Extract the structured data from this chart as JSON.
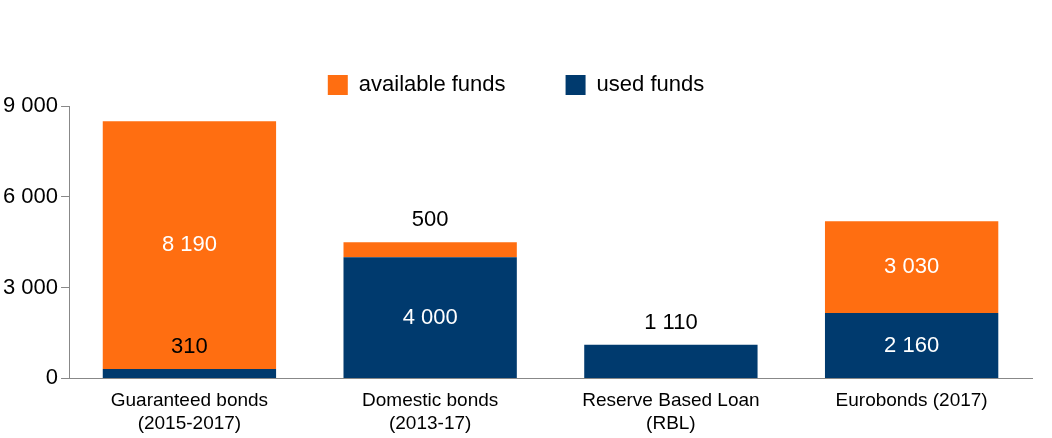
{
  "chart_data": {
    "type": "bar",
    "stacked": true,
    "categories": [
      "Guaranteed bonds\n(2015-2017)",
      "Domestic bonds\n(2013-17)",
      "Reserve Based Loan\n(RBL)",
      "Eurobonds (2017)"
    ],
    "series": [
      {
        "name": "used funds",
        "color": "#003a6e",
        "values": [
          310,
          4000,
          1110,
          2160
        ],
        "value_labels": [
          "310",
          "4 000",
          "1 110",
          "2 160"
        ]
      },
      {
        "name": "available funds",
        "color": "#ff6e11",
        "values": [
          8190,
          500,
          null,
          3030
        ],
        "value_labels": [
          "8 190",
          "500",
          null,
          "3 030"
        ]
      }
    ],
    "ylim": [
      0,
      9000
    ],
    "yticks": [
      {
        "value": 0,
        "label": "0"
      },
      {
        "value": 3000,
        "label": "3 000"
      },
      {
        "value": 6000,
        "label": "6 000"
      },
      {
        "value": 9000,
        "label": "9 000"
      }
    ],
    "grid": false,
    "legend": "top"
  }
}
